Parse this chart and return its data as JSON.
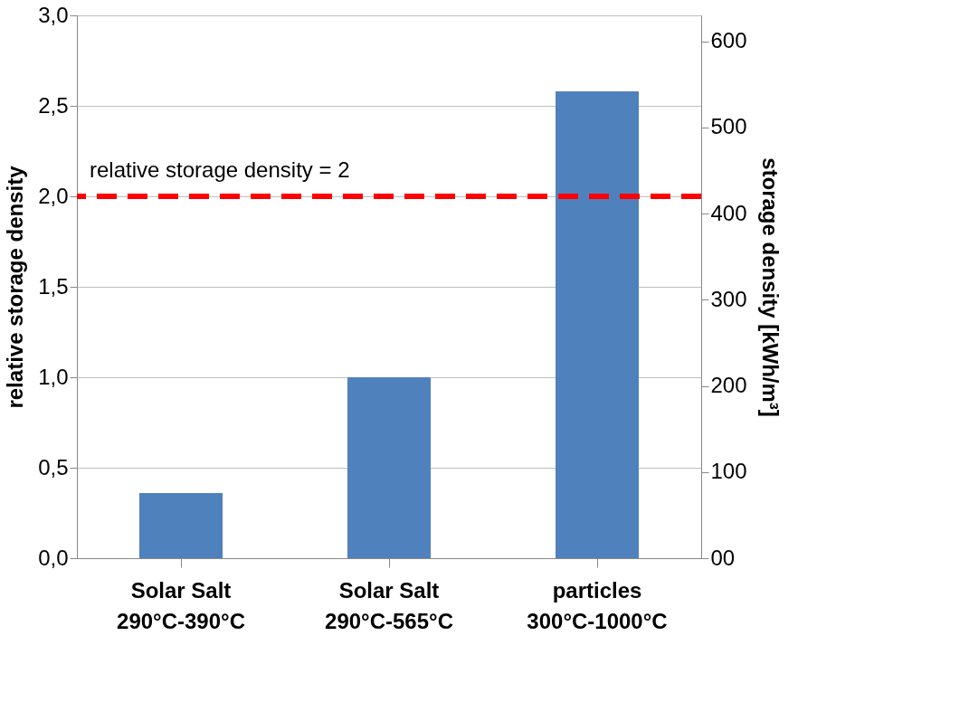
{
  "chart_data": {
    "type": "bar",
    "categories": [
      "Solar Salt\n290°C-390°C",
      "Solar Salt\n290°C-565°C",
      "particles\n300°C-1000°C"
    ],
    "values": [
      0.36,
      1.0,
      2.58
    ],
    "color": "#4f81bd",
    "ylabel": "relative storage density",
    "y2label": "storage density [kWh/m³]",
    "ylim": [
      0,
      3.0
    ],
    "yticks": [
      {
        "value": 0,
        "label": "0,0"
      },
      {
        "value": 0.5,
        "label": "0,5"
      },
      {
        "value": 1.0,
        "label": "1,0"
      },
      {
        "value": 1.5,
        "label": "1,5"
      },
      {
        "value": 2.0,
        "label": "2,0"
      },
      {
        "value": 2.5,
        "label": "2,5"
      },
      {
        "value": 3.0,
        "label": "3,0"
      }
    ],
    "y2lim": [
      0,
      630
    ],
    "y2ticks": [
      {
        "value": 0,
        "label": "00"
      },
      100,
      200,
      300,
      400,
      500,
      600
    ],
    "ref_lines": [
      {
        "axis": "y",
        "value": 2,
        "label": "relative storage density = 2",
        "color": "#ff0000",
        "line_style": "dashed"
      }
    ],
    "grid": "y"
  }
}
